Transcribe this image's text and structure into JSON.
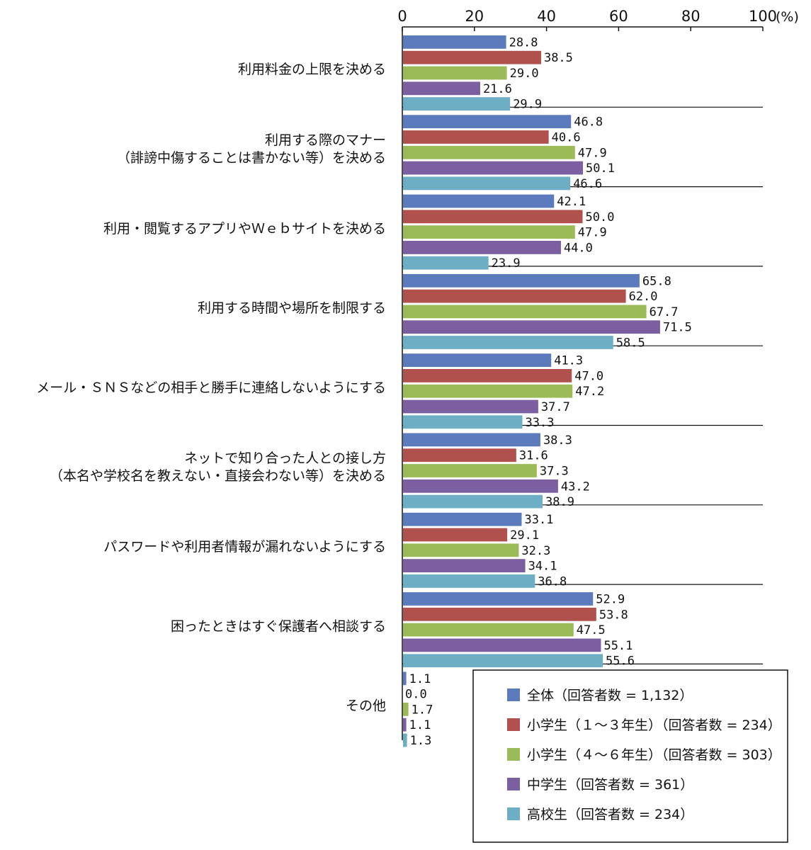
{
  "chart_data": {
    "type": "bar",
    "orientation": "horizontal",
    "unit": "(%)",
    "xlim": [
      0,
      100
    ],
    "x_ticks": [
      "0",
      "20",
      "40",
      "60",
      "80",
      "100"
    ],
    "categories": [
      [
        "利用料金の上限を決める"
      ],
      [
        "利用する際のマナー",
        "（誹謗中傷することは書かない等）を決める"
      ],
      [
        "利用・閲覧するアプリやＷｅｂサイトを決める"
      ],
      [
        "利用する時間や場所を制限する"
      ],
      [
        "メール・ＳＮＳなどの相手と勝手に連絡しないようにする"
      ],
      [
        "ネットで知り合った人との接し方",
        "（本名や学校名を教えない・直接会わない等）を決める"
      ],
      [
        "パスワードや利用者情報が漏れないようにする"
      ],
      [
        "困ったときはすぐ保護者へ相談する"
      ],
      [
        "その他"
      ]
    ],
    "series": [
      {
        "name": "全体（回答者数 = 1,132）",
        "color": "#5b7bbd",
        "values": [
          28.8,
          46.8,
          42.1,
          65.8,
          41.3,
          38.3,
          33.1,
          52.9,
          1.1
        ],
        "labels": [
          "28.8",
          "46.8",
          "42.1",
          "65.8",
          "41.3",
          "38.3",
          "33.1",
          "52.9",
          "1.1"
        ]
      },
      {
        "name": "小学生（１～３年生）（回答者数 = 234）",
        "color": "#b0514d",
        "values": [
          38.5,
          40.6,
          50.0,
          62.0,
          47.0,
          31.6,
          29.1,
          53.8,
          0.0
        ],
        "labels": [
          "38.5",
          "40.6",
          "50.0",
          "62.0",
          "47.0",
          "31.6",
          "29.1",
          "53.8",
          "0.0"
        ]
      },
      {
        "name": "小学生（４～６年生）（回答者数 = 303）",
        "color": "#9bbb59",
        "values": [
          29.0,
          47.9,
          47.9,
          67.7,
          47.2,
          37.3,
          32.3,
          47.5,
          1.7
        ],
        "labels": [
          "29.0",
          "47.9",
          "47.9",
          "67.7",
          "47.2",
          "37.3",
          "32.3",
          "47.5",
          "1.7"
        ]
      },
      {
        "name": "中学生（回答者数 = 361）",
        "color": "#7b5fa0",
        "values": [
          21.6,
          50.1,
          44.0,
          71.5,
          37.7,
          43.2,
          34.1,
          55.1,
          1.1
        ],
        "labels": [
          "21.6",
          "50.1",
          "44.0",
          "71.5",
          "37.7",
          "43.2",
          "34.1",
          "55.1",
          "1.1"
        ]
      },
      {
        "name": "高校生（回答者数 = 234）",
        "color": "#6eaec4",
        "values": [
          29.9,
          46.6,
          23.9,
          58.5,
          33.3,
          38.9,
          36.8,
          55.6,
          1.3
        ],
        "labels": [
          "29.9",
          "46.6",
          "23.9",
          "58.5",
          "33.3",
          "38.9",
          "36.8",
          "55.6",
          "1.3"
        ]
      }
    ],
    "legend": {
      "placement": "bottom-right"
    },
    "grid": false
  }
}
